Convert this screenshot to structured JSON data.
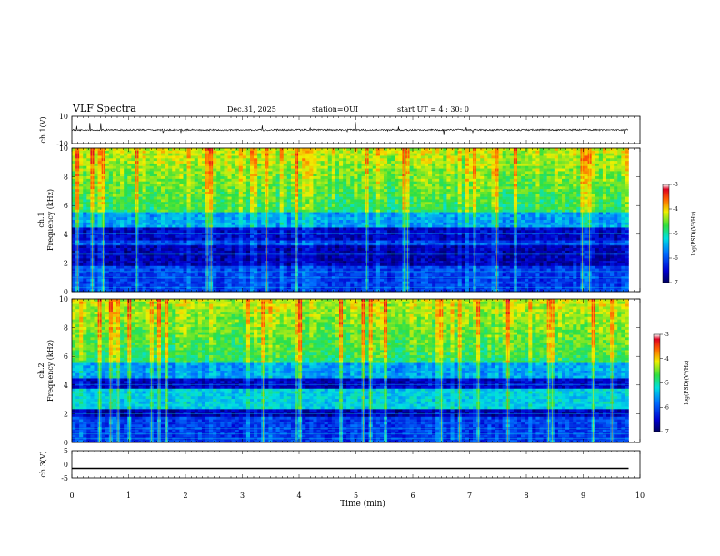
{
  "header": {
    "title": "VLF Spectra",
    "date": "Dec.31, 2025",
    "station": "station=OUI",
    "start": "start UT =  4 : 30: 0"
  },
  "chart_data": [
    {
      "type": "line",
      "panel": "ch1-waveform",
      "ylabel": "ch.1(V)",
      "ylim": [
        -10,
        10
      ],
      "yticks": [
        -10,
        10
      ],
      "xlim": [
        0,
        10
      ],
      "baseline": 0,
      "description_values": {
        "noise_amplitude": 0.6,
        "spike_max": 5
      }
    },
    {
      "type": "heatmap",
      "panel": "ch1-spectrogram",
      "ylabel": "ch.1\nFrequency (kHz)",
      "ylim": [
        0,
        10
      ],
      "yticks": [
        0,
        2,
        4,
        6,
        8,
        10
      ],
      "xlim": [
        0,
        9.8
      ],
      "colorbar": {
        "label": "log(PSD)(V²/Hz)",
        "range": [
          -7,
          -3
        ],
        "ticks": [
          -3,
          -4,
          -5,
          -6,
          -7
        ]
      }
    },
    {
      "type": "heatmap",
      "panel": "ch2-spectrogram",
      "ylabel": "ch.2\nFrequency (kHz)",
      "ylim": [
        0,
        10
      ],
      "yticks": [
        0,
        2,
        4,
        6,
        8,
        10
      ],
      "xlim": [
        0,
        9.8
      ],
      "colorbar": {
        "label": "log(PSD)(V²/Hz)",
        "range": [
          -7,
          -3
        ],
        "ticks": [
          -3,
          -4,
          -5,
          -6,
          -7
        ]
      }
    },
    {
      "type": "line",
      "panel": "ch3-waveform",
      "ylabel": "ch.3(V)",
      "ylim": [
        -5,
        5
      ],
      "yticks": [
        -5,
        0,
        5
      ],
      "xlim": [
        0,
        10
      ],
      "series": [
        {
          "name": "ch.3",
          "x": [
            0,
            9.8
          ],
          "y": [
            -1.5,
            -1.5
          ]
        }
      ]
    }
  ],
  "xaxis": {
    "label": "Time (min)",
    "ticks": [
      "0",
      "1",
      "2",
      "3",
      "4",
      "5",
      "6",
      "7",
      "8",
      "9",
      "10"
    ]
  },
  "labels": {
    "ch1_y": "ch.1(V)",
    "ch1_spec_a": "ch.1",
    "ch1_spec_b": "Frequency (kHz)",
    "ch2_spec_a": "ch.2",
    "ch2_spec_b": "Frequency (kHz)",
    "ch3_y": "ch.3(V)",
    "colorbar": "log(PSD)(V²/Hz)"
  },
  "ticklabels": {
    "ch1": [
      "10",
      "-10"
    ],
    "spec": [
      "0",
      "2",
      "4",
      "6",
      "8",
      "10"
    ],
    "ch3": [
      "5",
      "0",
      "-5"
    ],
    "cbar": [
      "-3",
      "-4",
      "-5",
      "-6",
      "-7"
    ]
  }
}
